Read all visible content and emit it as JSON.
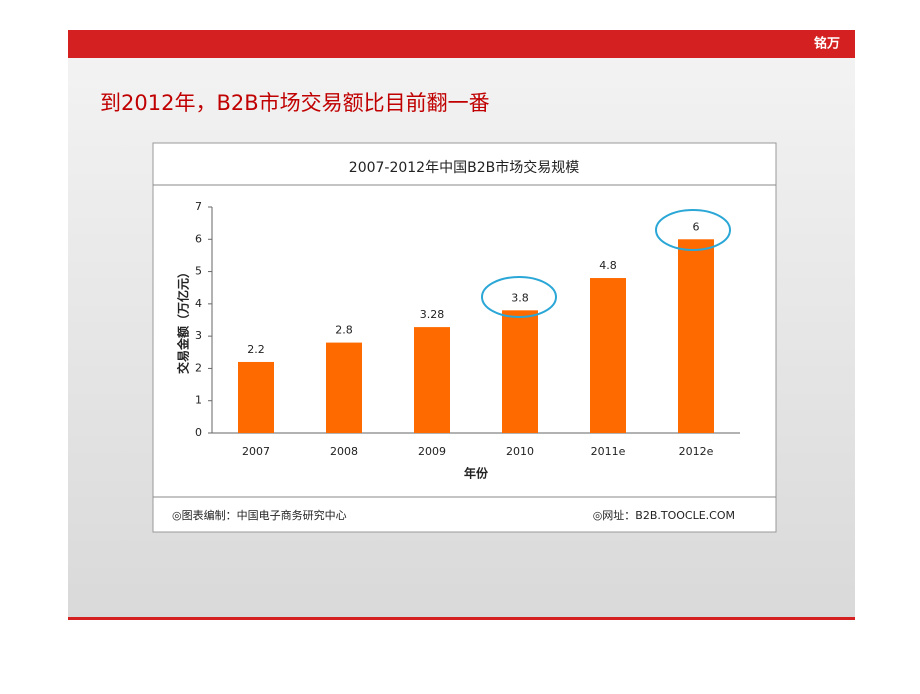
{
  "slide": {
    "logo": "铭万",
    "title": "到2012年，B2B市场交易额比目前翻一番"
  },
  "chart_data": {
    "type": "bar",
    "title": "2007-2012年中国B2B市场交易规模",
    "x_label": "年份",
    "y_label": "交易金额（万亿元）",
    "categories": [
      "2007",
      "2008",
      "2009",
      "2010",
      "2011e",
      "2012e"
    ],
    "values": [
      2.2,
      2.8,
      3.28,
      3.8,
      4.8,
      6
    ],
    "color": "#ff6a00",
    "ylim": [
      0,
      7
    ],
    "yticks": [
      0,
      1,
      2,
      3,
      4,
      5,
      6,
      7
    ],
    "source": "◎图表编制：中国电子商务研究中心",
    "website": "◎网址：B2B.TOOCLE.COM"
  }
}
